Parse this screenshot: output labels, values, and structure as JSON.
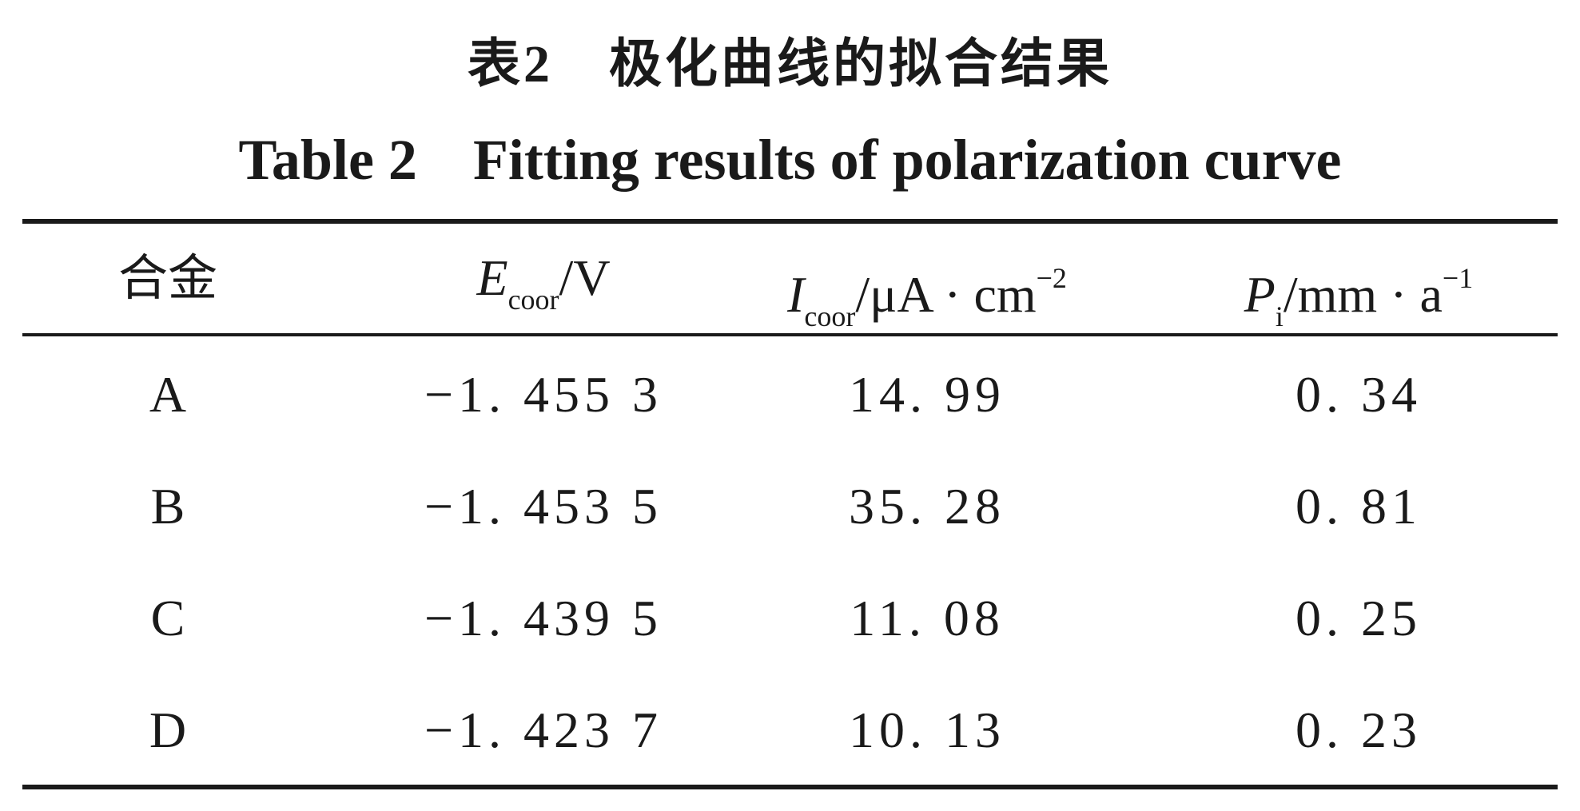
{
  "title_cn": {
    "prefix": "表",
    "number": "2",
    "text": "极化曲线的拟合结果"
  },
  "title_en": {
    "prefix": "Table 2",
    "text": "Fitting results of polarization curve"
  },
  "columns": {
    "alloy": "合金",
    "ecorr": {
      "symbol": "E",
      "subscript": "coor",
      "unit": "/V"
    },
    "icorr": {
      "symbol": "I",
      "subscript": "coor",
      "unit": "/μA · cm",
      "superscript": "−2"
    },
    "pi": {
      "symbol": "P",
      "subscript": "i",
      "unit": "/mm · a",
      "superscript": "−1"
    }
  },
  "rows": [
    {
      "alloy": "A",
      "ecorr": "−1. 455 3",
      "icorr": "14. 99",
      "pi": "0. 34"
    },
    {
      "alloy": "B",
      "ecorr": "−1. 453 5",
      "icorr": "35. 28",
      "pi": "0. 81"
    },
    {
      "alloy": "C",
      "ecorr": "−1. 439 5",
      "icorr": "11. 08",
      "pi": "0. 25"
    },
    {
      "alloy": "D",
      "ecorr": "−1. 423 7",
      "icorr": "10. 13",
      "pi": "0. 23"
    }
  ]
}
